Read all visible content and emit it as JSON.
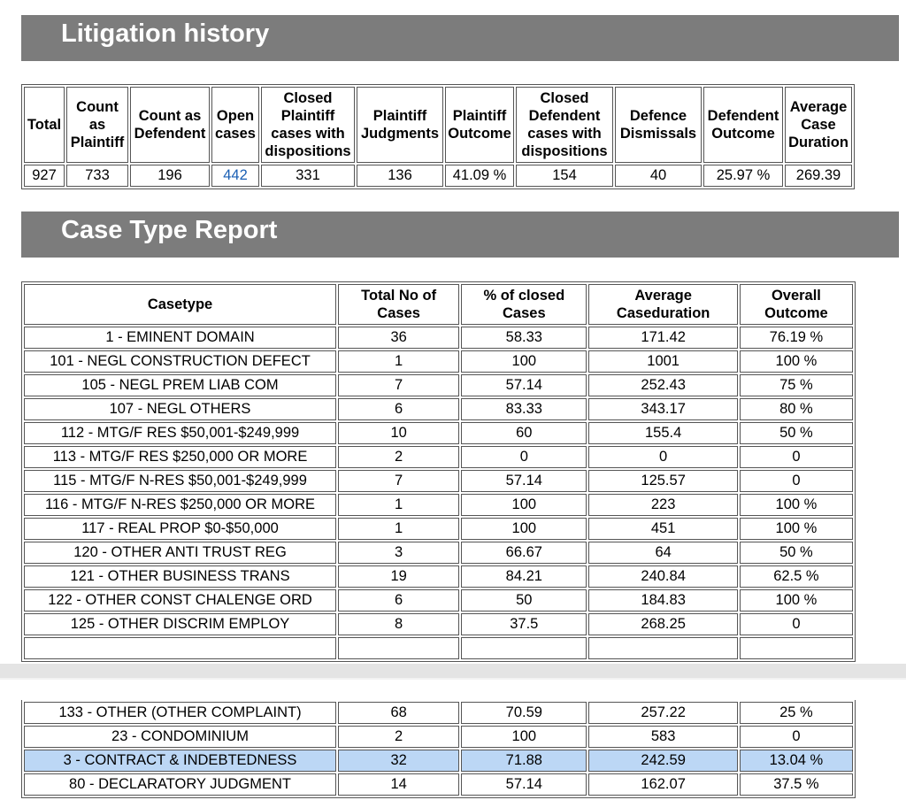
{
  "litigation": {
    "title": "Litigation history",
    "headers": [
      "Total",
      "Count as Plaintiff",
      "Count as Defendent",
      "Open cases",
      "Closed Plaintiff cases with dispositions",
      "Plaintiff Judgments",
      "Plaintiff Outcome",
      "Closed Defendent cases with dispositions",
      "Defence Dismissals",
      "Defendent Outcome",
      "Average Case Duration"
    ],
    "values": [
      "927",
      "733",
      "196",
      "442",
      "331",
      "136",
      "41.09 %",
      "154",
      "40",
      "25.97 %",
      "269.39"
    ]
  },
  "case_type": {
    "title": "Case Type Report",
    "headers": [
      "Casetype",
      "Total No of Cases",
      "% of closed Cases",
      "Average Caseduration",
      "Overall Outcome"
    ],
    "rows": [
      [
        "1 - EMINENT DOMAIN",
        "36",
        "58.33",
        "171.42",
        "76.19 %"
      ],
      [
        "101 - NEGL CONSTRUCTION DEFECT",
        "1",
        "100",
        "1001",
        "100 %"
      ],
      [
        "105 - NEGL PREM LIAB COM",
        "7",
        "57.14",
        "252.43",
        "75 %"
      ],
      [
        "107 - NEGL OTHERS",
        "6",
        "83.33",
        "343.17",
        "80 %"
      ],
      [
        "112 - MTG/F RES $50,001-$249,999",
        "10",
        "60",
        "155.4",
        "50 %"
      ],
      [
        "113 - MTG/F RES $250,000 OR MORE",
        "2",
        "0",
        "0",
        "0"
      ],
      [
        "115 - MTG/F N-RES $50,001-$249,999",
        "7",
        "57.14",
        "125.57",
        "0"
      ],
      [
        "116 - MTG/F N-RES $250,000 OR MORE",
        "1",
        "100",
        "223",
        "100 %"
      ],
      [
        "117 - REAL PROP $0-$50,000",
        "1",
        "100",
        "451",
        "100 %"
      ],
      [
        "120 - OTHER ANTI TRUST REG",
        "3",
        "66.67",
        "64",
        "50 %"
      ],
      [
        "121 - OTHER BUSINESS TRANS",
        "19",
        "84.21",
        "240.84",
        "62.5 %"
      ],
      [
        "122 - OTHER CONST CHALENGE ORD",
        "6",
        "50",
        "184.83",
        "100 %"
      ],
      [
        "125 - OTHER DISCRIM EMPLOY",
        "8",
        "37.5",
        "268.25",
        "0"
      ]
    ],
    "continued_rows": [
      [
        "133 - OTHER (OTHER COMPLAINT)",
        "68",
        "70.59",
        "257.22",
        "25 %"
      ],
      [
        "23 - CONDOMINIUM",
        "2",
        "100",
        "583",
        "0"
      ],
      [
        "3 - CONTRACT & INDEBTEDNESS",
        "32",
        "71.88",
        "242.59",
        "13.04 %"
      ],
      [
        "80 - DECLARATORY JUDGMENT",
        "14",
        "57.14",
        "162.07",
        "37.5 %"
      ]
    ]
  }
}
